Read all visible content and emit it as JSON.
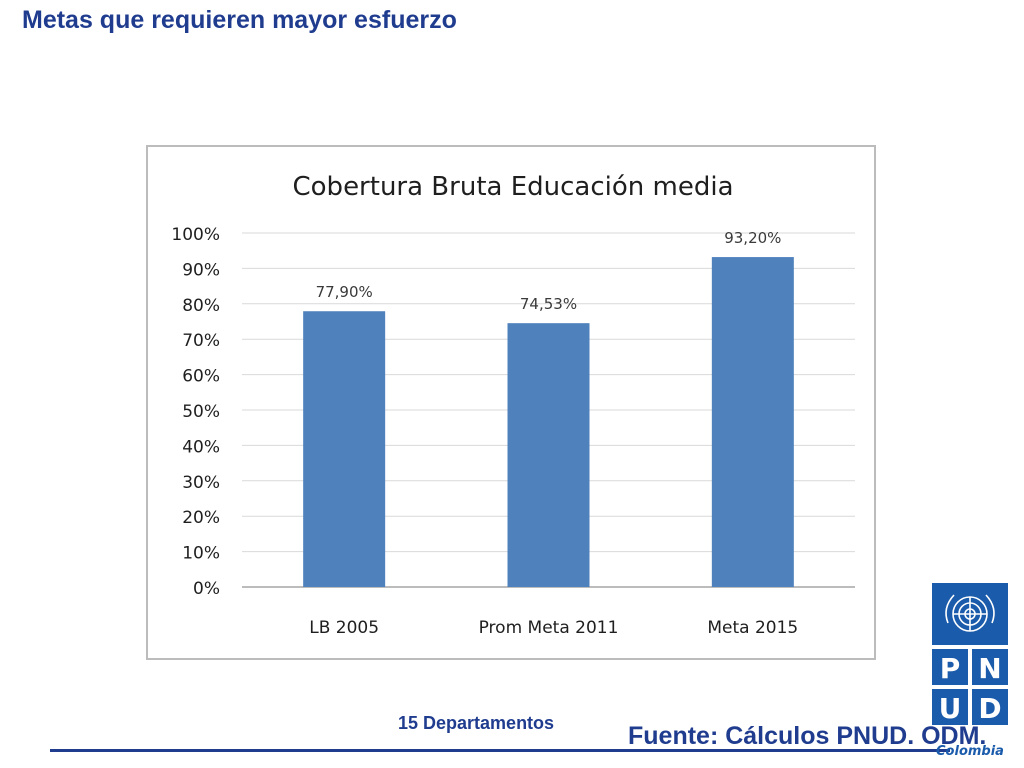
{
  "slide": {
    "title": "Metas que requieren mayor esfuerzo",
    "subtitle": "15 Departamentos",
    "source": "Fuente: Cálculos PNUD. ODM."
  },
  "logo": {
    "letters": [
      "P",
      "N",
      "U",
      "D"
    ],
    "caption": "Colombia",
    "color": "#1b5bab"
  },
  "chart_data": {
    "type": "bar",
    "title": "Cobertura Bruta Educación media",
    "categories": [
      "LB 2005",
      "Prom Meta 2011",
      "Meta 2015"
    ],
    "values": [
      77.9,
      74.53,
      93.2
    ],
    "data_labels": [
      "77,90%",
      "74,53%",
      "93,20%"
    ],
    "ylim": [
      0,
      100
    ],
    "yticks": [
      0,
      10,
      20,
      30,
      40,
      50,
      60,
      70,
      80,
      90,
      100
    ],
    "ytick_labels": [
      "0%",
      "10%",
      "20%",
      "30%",
      "40%",
      "50%",
      "60%",
      "70%",
      "80%",
      "90%",
      "100%"
    ],
    "grid": true,
    "bar_color": "#4f81bd",
    "xlabel": "",
    "ylabel": ""
  }
}
